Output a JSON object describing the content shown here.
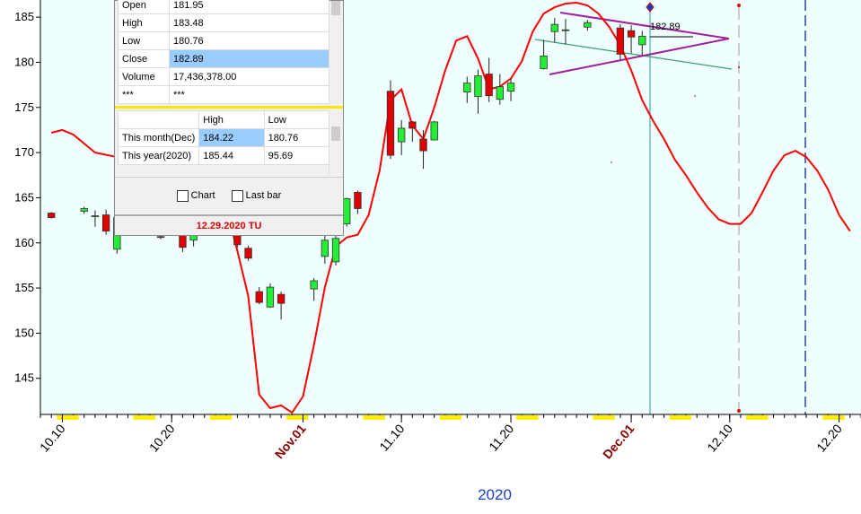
{
  "chart_data": {
    "type": "candlestick",
    "x": [
      "2020-10-09",
      "2020-10-12",
      "2020-10-13",
      "2020-10-14",
      "2020-10-15",
      "2020-10-19",
      "2020-10-21",
      "2020-10-22",
      "2020-10-26",
      "2020-10-27",
      "2020-10-28",
      "2020-10-29",
      "2020-10-30",
      "2020-11-02",
      "2020-11-03",
      "2020-11-04",
      "2020-11-05",
      "2020-11-06",
      "2020-11-09",
      "2020-11-10",
      "2020-11-11",
      "2020-11-12",
      "2020-11-13",
      "2020-11-16",
      "2020-11-17",
      "2020-11-18",
      "2020-11-19",
      "2020-11-20",
      "2020-11-23",
      "2020-11-24",
      "2020-11-25",
      "2020-11-27",
      "2020-11-30",
      "2020-12-01",
      "2020-12-02"
    ],
    "open": [
      163.3,
      163.5,
      162.9,
      163.1,
      159.3,
      160.7,
      160.9,
      160.3,
      160.8,
      159.4,
      154.6,
      152.9,
      154.3,
      154.9,
      158.5,
      157.9,
      162.1,
      165.6,
      176.8,
      171.2,
      173.4,
      171.5,
      171.4,
      176.7,
      176.2,
      178.7,
      175.9,
      176.8,
      179.3,
      183.4,
      183.6,
      183.9,
      183.8,
      183.5,
      181.95
    ],
    "high": [
      163.4,
      164.0,
      163.6,
      163.7,
      162.9,
      161.0,
      161.2,
      161.0,
      161.1,
      159.7,
      155.1,
      155.5,
      154.6,
      156.1,
      161.3,
      161.0,
      165.0,
      165.8,
      178.0,
      173.6,
      173.5,
      172.5,
      173.5,
      178.4,
      179.2,
      180.5,
      178.7,
      178.2,
      182.5,
      184.9,
      184.8,
      184.7,
      184.2,
      184.1,
      183.48
    ],
    "low": [
      162.7,
      163.2,
      161.8,
      160.9,
      158.8,
      160.4,
      159.0,
      159.6,
      159.5,
      158.0,
      153.2,
      152.8,
      151.5,
      153.6,
      157.7,
      157.5,
      161.8,
      163.2,
      169.3,
      169.7,
      171.2,
      168.2,
      171.4,
      175.5,
      174.3,
      175.6,
      175.3,
      175.7,
      179.2,
      182.2,
      182.0,
      183.5,
      180.3,
      181.0,
      180.76
    ],
    "close": [
      162.8,
      163.8,
      163.0,
      161.3,
      162.8,
      160.6,
      159.5,
      160.9,
      159.8,
      158.3,
      153.4,
      155.1,
      153.3,
      155.8,
      160.3,
      160.5,
      164.9,
      163.8,
      169.7,
      172.7,
      172.7,
      170.2,
      173.4,
      177.7,
      178.5,
      176.3,
      177.3,
      177.7,
      180.7,
      184.2,
      183.6,
      184.4,
      180.9,
      182.8,
      182.89
    ],
    "up_color": "#22ee33",
    "down_color": "#e00000",
    "overlay": {
      "color": "#ff0000",
      "x": [
        "2020-10-09",
        "2020-10-10",
        "2020-10-11",
        "2020-10-13",
        "2020-10-15",
        "2020-10-25",
        "2020-10-26",
        "2020-10-27",
        "2020-10-28",
        "2020-10-29",
        "2020-10-30",
        "2020-10-31",
        "2020-11-01",
        "2020-11-02",
        "2020-11-03",
        "2020-11-04",
        "2020-11-05",
        "2020-11-06",
        "2020-11-07",
        "2020-11-08",
        "2020-11-09",
        "2020-11-10",
        "2020-11-11",
        "2020-11-12",
        "2020-11-13",
        "2020-11-14",
        "2020-11-15",
        "2020-11-16",
        "2020-11-17",
        "2020-11-18",
        "2020-11-19",
        "2020-11-20",
        "2020-11-21",
        "2020-11-22",
        "2020-11-23",
        "2020-11-24",
        "2020-11-25",
        "2020-11-26",
        "2020-11-27",
        "2020-11-28",
        "2020-11-29",
        "2020-11-30",
        "2020-12-01",
        "2020-12-02",
        "2020-12-03",
        "2020-12-04",
        "2020-12-05",
        "2020-12-06",
        "2020-12-07",
        "2020-12-08",
        "2020-12-09",
        "2020-12-10",
        "2020-12-11",
        "2020-12-12",
        "2020-12-13",
        "2020-12-14",
        "2020-12-15",
        "2020-12-16",
        "2020-12-17",
        "2020-12-18",
        "2020-12-19",
        "2020-12-20",
        "2020-12-21"
      ],
      "values": [
        172.2,
        172.5,
        172.0,
        170.0,
        169.5,
        163.8,
        159.1,
        154.1,
        143.2,
        141.7,
        142.0,
        141.2,
        143.0,
        148.7,
        155.1,
        159.6,
        160.6,
        160.9,
        163.1,
        168.0,
        175.8,
        177.0,
        173.0,
        171.5,
        175.0,
        179.1,
        182.4,
        182.9,
        180.4,
        177.0,
        177.3,
        178.2,
        180.1,
        183.4,
        185.4,
        186.1,
        186.5,
        186.6,
        186.3,
        185.4,
        183.9,
        181.9,
        179.1,
        175.8,
        173.5,
        171.5,
        169.2,
        167.5,
        165.6,
        163.9,
        162.6,
        162.1,
        162.1,
        163.3,
        165.6,
        168.0,
        169.7,
        170.2,
        169.5,
        168.0,
        165.9,
        163.1,
        161.3
      ]
    },
    "xlim": [
      "2020-10-08",
      "2020-12-22"
    ],
    "xticks": [
      {
        "value": "2020-10-10",
        "label": "10.10"
      },
      {
        "value": "2020-10-20",
        "label": "10.20"
      },
      {
        "value": "2020-11-01",
        "label": "Nov.01"
      },
      {
        "value": "2020-11-10",
        "label": "11.10"
      },
      {
        "value": "2020-11-20",
        "label": "11.20"
      },
      {
        "value": "2020-12-01",
        "label": "Dec.01"
      },
      {
        "value": "2020-12-10",
        "label": "12.10"
      },
      {
        "value": "2020-12-20",
        "label": "12.20"
      }
    ],
    "ylim": [
      141,
      186.9
    ],
    "yticks": [
      145,
      150,
      155,
      160,
      165,
      170,
      175,
      180,
      185
    ],
    "xlabel": "2020",
    "price_label": "182.89"
  },
  "info_panel": {
    "quote_rows": [
      [
        "Open",
        "181.95"
      ],
      [
        "High",
        "183.48"
      ],
      [
        "Low",
        "180.76"
      ],
      [
        "Close",
        "182.89"
      ],
      [
        "Volume",
        "17,436,378.00"
      ],
      [
        "***",
        "***"
      ]
    ],
    "range_header": [
      "High",
      "Low"
    ],
    "range_rows": [
      [
        "This month(Dec)",
        "184.22",
        "180.76"
      ],
      [
        "This year(2020)",
        "185.44",
        "95.69"
      ]
    ],
    "checkboxes": [
      "Chart",
      "Last bar"
    ],
    "footer": "12.29.2020 TU"
  }
}
